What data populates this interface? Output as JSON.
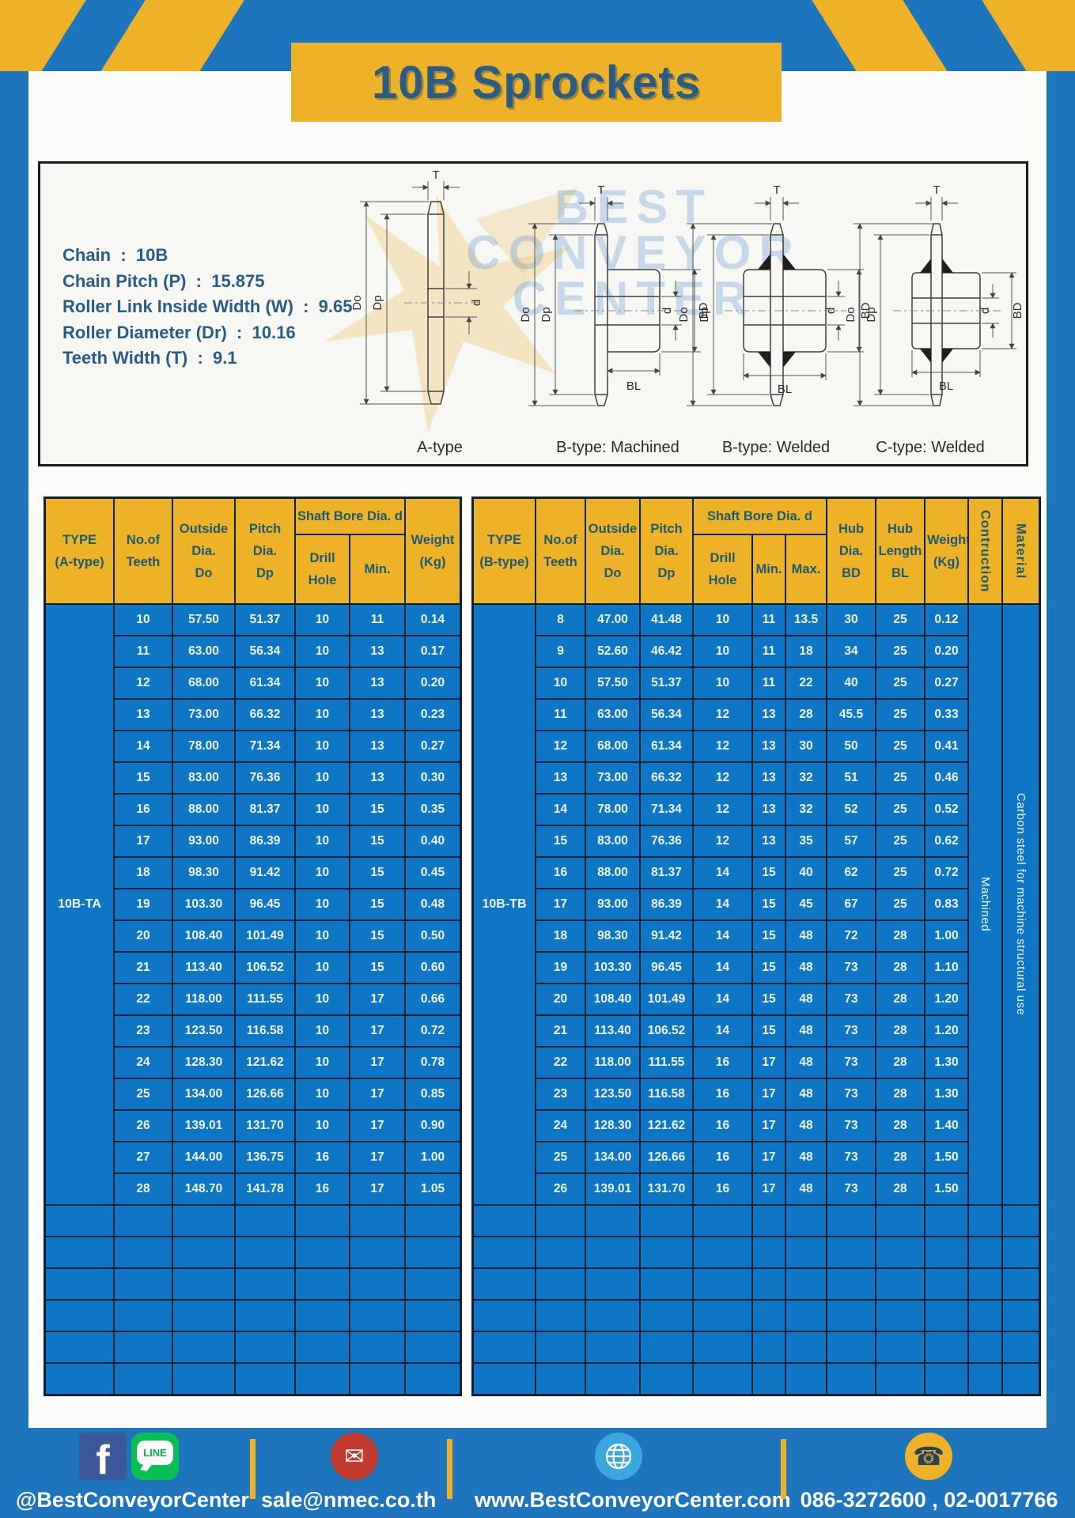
{
  "header": {
    "title": "10B Sprockets"
  },
  "specs": [
    {
      "label": "Chain",
      "value": "10B"
    },
    {
      "label": "Chain Pitch (P)",
      "value": "15.875"
    },
    {
      "label": "Roller Link Inside Width (W)",
      "value": "9.65"
    },
    {
      "label": "Roller Diameter (Dr)",
      "value": "10.16"
    },
    {
      "label": "Teeth Width (T)",
      "value": "9.1"
    }
  ],
  "diagram": {
    "captions": [
      "A-type",
      "B-type: Machined",
      "B-type: Welded",
      "C-type: Welded"
    ],
    "dims": {
      "t": "T",
      "dia_out": "Do",
      "dia_pitch": "Dp",
      "bore": "d",
      "hub_dia": "BD",
      "hub_len": "BL"
    },
    "watermark": {
      "line1": "BEST",
      "line2": "CONVEYOR",
      "line3": "CENTER"
    }
  },
  "table_a": {
    "type_value": "10B-TA",
    "headers": {
      "type": "TYPE\n(A-type)",
      "teeth": "No.of\nTeeth",
      "outside": "Outside\nDia.\nDo",
      "pitch": "Pitch Dia.\nDp",
      "shaft_bore": "Shaft Bore Dia. d",
      "drill": "Drill Hole",
      "min": "Min.",
      "weight": "Weight\n(Kg)"
    },
    "rows": [
      [
        "10",
        "57.50",
        "51.37",
        "10",
        "11",
        "0.14"
      ],
      [
        "11",
        "63.00",
        "56.34",
        "10",
        "13",
        "0.17"
      ],
      [
        "12",
        "68.00",
        "61.34",
        "10",
        "13",
        "0.20"
      ],
      [
        "13",
        "73.00",
        "66.32",
        "10",
        "13",
        "0.23"
      ],
      [
        "14",
        "78.00",
        "71.34",
        "10",
        "13",
        "0.27"
      ],
      [
        "15",
        "83.00",
        "76.36",
        "10",
        "13",
        "0.30"
      ],
      [
        "16",
        "88.00",
        "81.37",
        "10",
        "15",
        "0.35"
      ],
      [
        "17",
        "93.00",
        "86.39",
        "10",
        "15",
        "0.40"
      ],
      [
        "18",
        "98.30",
        "91.42",
        "10",
        "15",
        "0.45"
      ],
      [
        "19",
        "103.30",
        "96.45",
        "10",
        "15",
        "0.48"
      ],
      [
        "20",
        "108.40",
        "101.49",
        "10",
        "15",
        "0.50"
      ],
      [
        "21",
        "113.40",
        "106.52",
        "10",
        "15",
        "0.60"
      ],
      [
        "22",
        "118.00",
        "111.55",
        "10",
        "17",
        "0.66"
      ],
      [
        "23",
        "123.50",
        "116.58",
        "10",
        "17",
        "0.72"
      ],
      [
        "24",
        "128.30",
        "121.62",
        "10",
        "17",
        "0.78"
      ],
      [
        "25",
        "134.00",
        "126.66",
        "10",
        "17",
        "0.85"
      ],
      [
        "26",
        "139.01",
        "131.70",
        "10",
        "17",
        "0.90"
      ],
      [
        "27",
        "144.00",
        "136.75",
        "16",
        "17",
        "1.00"
      ],
      [
        "28",
        "148.70",
        "141.78",
        "16",
        "17",
        "1.05"
      ]
    ],
    "empty_rows": 6
  },
  "table_b": {
    "type_value": "10B-TB",
    "headers": {
      "type": "TYPE\n(B-type)",
      "teeth": "No.of\nTeeth",
      "outside": "Outside\nDia.\nDo",
      "pitch": "Pitch Dia.\nDp",
      "shaft_bore": "Shaft Bore Dia. d",
      "drill": "Drill Hole",
      "min": "Min.",
      "max": "Max.",
      "hub_dia": "Hub Dia.\nBD",
      "hub_len": "Hub\nLength\nBL",
      "weight": "Weight\n(Kg)",
      "construction": "Contruction",
      "material": "Material"
    },
    "construction_value": "Machined",
    "material_value": "Carbon steel  for machine structural use",
    "rows": [
      [
        "8",
        "47.00",
        "41.48",
        "10",
        "11",
        "13.5",
        "30",
        "25",
        "0.12"
      ],
      [
        "9",
        "52.60",
        "46.42",
        "10",
        "11",
        "18",
        "34",
        "25",
        "0.20"
      ],
      [
        "10",
        "57.50",
        "51.37",
        "10",
        "11",
        "22",
        "40",
        "25",
        "0.27"
      ],
      [
        "11",
        "63.00",
        "56.34",
        "12",
        "13",
        "28",
        "45.5",
        "25",
        "0.33"
      ],
      [
        "12",
        "68.00",
        "61.34",
        "12",
        "13",
        "30",
        "50",
        "25",
        "0.41"
      ],
      [
        "13",
        "73.00",
        "66.32",
        "12",
        "13",
        "32",
        "51",
        "25",
        "0.46"
      ],
      [
        "14",
        "78.00",
        "71.34",
        "12",
        "13",
        "32",
        "52",
        "25",
        "0.52"
      ],
      [
        "15",
        "83.00",
        "76.36",
        "12",
        "13",
        "35",
        "57",
        "25",
        "0.62"
      ],
      [
        "16",
        "88.00",
        "81.37",
        "14",
        "15",
        "40",
        "62",
        "25",
        "0.72"
      ],
      [
        "17",
        "93.00",
        "86.39",
        "14",
        "15",
        "45",
        "67",
        "25",
        "0.83"
      ],
      [
        "18",
        "98.30",
        "91.42",
        "14",
        "15",
        "48",
        "72",
        "28",
        "1.00"
      ],
      [
        "19",
        "103.30",
        "96.45",
        "14",
        "15",
        "48",
        "73",
        "28",
        "1.10"
      ],
      [
        "20",
        "108.40",
        "101.49",
        "14",
        "15",
        "48",
        "73",
        "28",
        "1.20"
      ],
      [
        "21",
        "113.40",
        "106.52",
        "14",
        "15",
        "48",
        "73",
        "28",
        "1.20"
      ],
      [
        "22",
        "118.00",
        "111.55",
        "16",
        "17",
        "48",
        "73",
        "28",
        "1.30"
      ],
      [
        "23",
        "123.50",
        "116.58",
        "16",
        "17",
        "48",
        "73",
        "28",
        "1.30"
      ],
      [
        "24",
        "128.30",
        "121.62",
        "16",
        "17",
        "48",
        "73",
        "28",
        "1.40"
      ],
      [
        "25",
        "134.00",
        "126.66",
        "16",
        "17",
        "48",
        "73",
        "28",
        "1.50"
      ],
      [
        "26",
        "139.01",
        "131.70",
        "16",
        "17",
        "48",
        "73",
        "28",
        "1.50"
      ]
    ],
    "empty_rows": 6
  },
  "footer": {
    "facebook_letter": "f",
    "line_label": "LINE",
    "social_handle": "@BestConveyorCenter",
    "email": "sale@nmec.co.th",
    "website": "www.BestConveyorCenter.com",
    "phone": "086-3272600 , 02-0017766"
  },
  "colors": {
    "frame_blue": "#1d76bd",
    "accent_yellow": "#edb226",
    "cell_blue": "#0f76c5",
    "heading_text": "#2b5c86"
  }
}
